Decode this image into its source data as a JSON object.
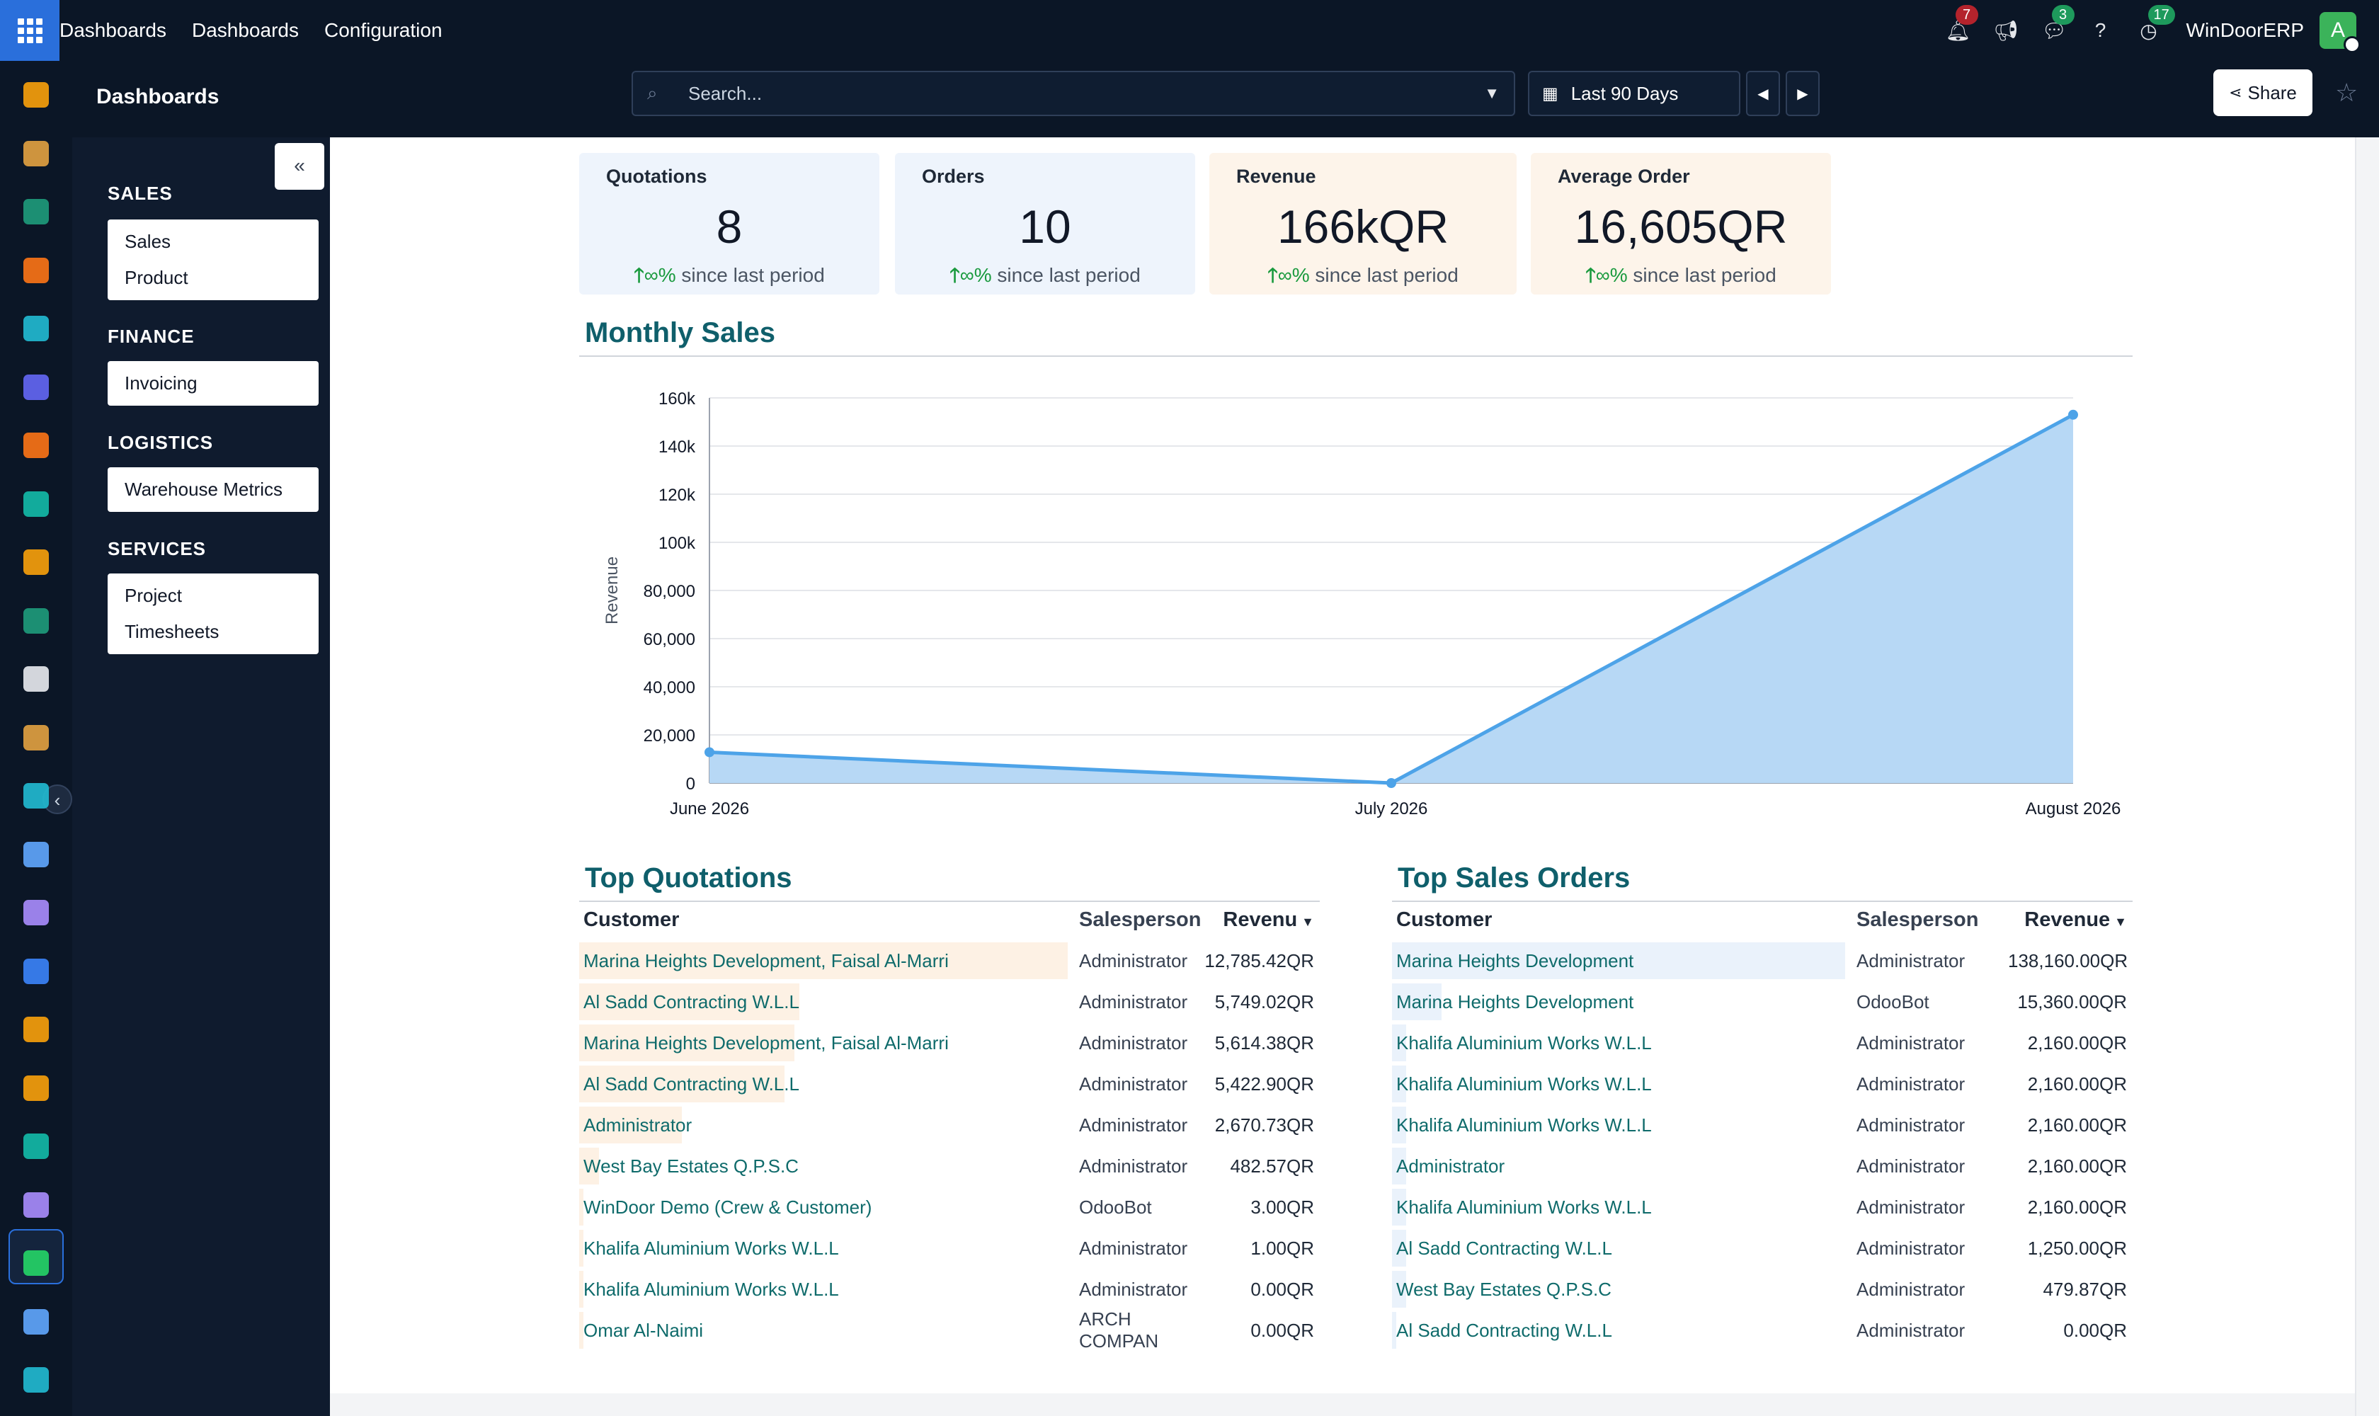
{
  "topbar": {
    "menu": [
      "Dashboards",
      "Dashboards",
      "Configuration"
    ],
    "notifications": "7",
    "messages": "3",
    "activities": "17",
    "company": "WinDoorERP",
    "avatar_letter": "A"
  },
  "panel": {
    "title": "Dashboards",
    "search_placeholder": "Search...",
    "date_range": "Last 90 Days",
    "share_label": "Share"
  },
  "sidebar": {
    "groups": [
      {
        "title": "SALES",
        "items": [
          "Sales",
          "Product"
        ]
      },
      {
        "title": "FINANCE",
        "items": [
          "Invoicing"
        ]
      },
      {
        "title": "LOGISTICS",
        "items": [
          "Warehouse Metrics"
        ]
      },
      {
        "title": "SERVICES",
        "items": [
          "Project",
          "Timesheets"
        ]
      }
    ]
  },
  "kpis": [
    {
      "title": "Quotations",
      "value": "8",
      "change": "∞%",
      "since": " since last period"
    },
    {
      "title": "Orders",
      "value": "10",
      "change": "∞%",
      "since": " since last period"
    },
    {
      "title": "Revenue",
      "value": "166kQR",
      "change": "∞%",
      "since": " since last period"
    },
    {
      "title": "Average Order",
      "value": "16,605QR",
      "change": "∞%",
      "since": " since last period"
    }
  ],
  "monthly_sales": {
    "title": "Monthly Sales"
  },
  "chart_data": {
    "type": "area",
    "categories": [
      "June 2026",
      "July 2026",
      "August 2026"
    ],
    "series": [
      {
        "values": [
          12800,
          0,
          153000
        ]
      }
    ],
    "ylabel": "Revenue",
    "ylim": [
      0,
      160000
    ],
    "yticks": [
      "0",
      "20,000",
      "40,000",
      "60,000",
      "80,000",
      "100k",
      "120k",
      "140k",
      "160k"
    ],
    "grid": true,
    "color": "#4da3e8",
    "fill": "#b7d8f5"
  },
  "top_quotations": {
    "title": "Top Quotations",
    "headers": {
      "customer": "Customer",
      "salesperson": "Salesperson",
      "revenue": "Revenu"
    },
    "rows": [
      {
        "customer": "Marina Heights Development, Faisal Al-Marri",
        "salesperson": "Administrator",
        "revenue": "12,785.42QR",
        "share": 1.0
      },
      {
        "customer": "Al Sadd Contracting W.L.L",
        "salesperson": "Administrator",
        "revenue": "5,749.02QR",
        "share": 0.45
      },
      {
        "customer": "Marina Heights Development, Faisal Al-Marri",
        "salesperson": "Administrator",
        "revenue": "5,614.38QR",
        "share": 0.44
      },
      {
        "customer": "Al Sadd Contracting W.L.L",
        "salesperson": "Administrator",
        "revenue": "5,422.90QR",
        "share": 0.42
      },
      {
        "customer": "Administrator",
        "salesperson": "Administrator",
        "revenue": "2,670.73QR",
        "share": 0.21
      },
      {
        "customer": "West Bay Estates Q.P.S.C",
        "salesperson": "Administrator",
        "revenue": "482.57QR",
        "share": 0.04
      },
      {
        "customer": "WinDoor Demo (Crew & Customer)",
        "salesperson": "OdooBot",
        "revenue": "3.00QR",
        "share": 0.0
      },
      {
        "customer": "Khalifa Aluminium Works W.L.L",
        "salesperson": "Administrator",
        "revenue": "1.00QR",
        "share": 0.0
      },
      {
        "customer": "Khalifa Aluminium Works W.L.L",
        "salesperson": "Administrator",
        "revenue": "0.00QR",
        "share": 0.0
      },
      {
        "customer": "Omar Al-Naimi",
        "salesperson": "ARCH COMPAN",
        "revenue": "0.00QR",
        "share": 0.0
      }
    ]
  },
  "top_sales_orders": {
    "title": "Top Sales Orders",
    "headers": {
      "customer": "Customer",
      "salesperson": "Salesperson",
      "revenue": "Revenue"
    },
    "rows": [
      {
        "customer": "Marina Heights Development",
        "salesperson": "Administrator",
        "revenue": "138,160.00QR",
        "share": 1.0
      },
      {
        "customer": "Marina Heights Development",
        "salesperson": "OdooBot",
        "revenue": "15,360.00QR",
        "share": 0.11
      },
      {
        "customer": "Khalifa Aluminium Works W.L.L",
        "salesperson": "Administrator",
        "revenue": "2,160.00QR",
        "share": 0.016
      },
      {
        "customer": "Khalifa Aluminium Works W.L.L",
        "salesperson": "Administrator",
        "revenue": "2,160.00QR",
        "share": 0.016
      },
      {
        "customer": "Khalifa Aluminium Works W.L.L",
        "salesperson": "Administrator",
        "revenue": "2,160.00QR",
        "share": 0.016
      },
      {
        "customer": "Administrator",
        "salesperson": "Administrator",
        "revenue": "2,160.00QR",
        "share": 0.016
      },
      {
        "customer": "Khalifa Aluminium Works W.L.L",
        "salesperson": "Administrator",
        "revenue": "2,160.00QR",
        "share": 0.016
      },
      {
        "customer": "Al Sadd Contracting W.L.L",
        "salesperson": "Administrator",
        "revenue": "1,250.00QR",
        "share": 0.009
      },
      {
        "customer": "West Bay Estates Q.P.S.C",
        "salesperson": "Administrator",
        "revenue": "479.87QR",
        "share": 0.003
      },
      {
        "customer": "Al Sadd Contracting W.L.L",
        "salesperson": "Administrator",
        "revenue": "0.00QR",
        "share": 0.0
      }
    ]
  },
  "rail_icons": [
    {
      "name": "sales-app-icon",
      "color": "#f59e0b"
    },
    {
      "name": "studio-app-icon",
      "color": "#e0a040"
    },
    {
      "name": "contacts-app-icon",
      "color": "#1e9a7a"
    },
    {
      "name": "discuss-app-icon",
      "color": "#f97316"
    },
    {
      "name": "website-app-icon",
      "color": "#22b8cf"
    },
    {
      "name": "email-marketing-app-icon",
      "color": "#6366f1"
    },
    {
      "name": "livechat-app-icon",
      "color": "#f97316"
    },
    {
      "name": "inventory-app-icon",
      "color": "#14b8a6"
    },
    {
      "name": "reporting-app-icon",
      "color": "#f59e0b"
    },
    {
      "name": "employees-app-icon",
      "color": "#1e9a7a"
    },
    {
      "name": "products-app-icon",
      "color": "#e5e7eb"
    },
    {
      "name": "settings-app-icon",
      "color": "#e0a040"
    },
    {
      "name": "project-app-icon",
      "color": "#22b8cf"
    },
    {
      "name": "knowledge-app-icon",
      "color": "#60a5fa"
    },
    {
      "name": "apps-store-icon",
      "color": "#a78bfa"
    },
    {
      "name": "accounting-app-icon",
      "color": "#3b82f6"
    },
    {
      "name": "team-app-icon",
      "color": "#f59e0b"
    },
    {
      "name": "calendar-app-icon",
      "color": "#f59e0b"
    },
    {
      "name": "sign-app-icon",
      "color": "#14b8a6"
    },
    {
      "name": "dashboards-app-icon",
      "color": "#a78bfa"
    },
    {
      "name": "whatsapp-app-icon",
      "color": "#25d366"
    },
    {
      "name": "time-off-app-icon",
      "color": "#60a5fa"
    },
    {
      "name": "website-2-app-icon",
      "color": "#22b8cf"
    }
  ]
}
